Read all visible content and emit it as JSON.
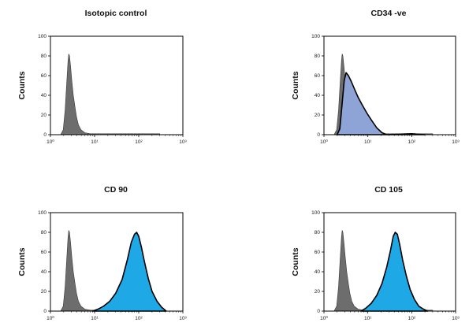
{
  "figure": {
    "colors": {
      "control_fill": "#6d6d6d",
      "control_stroke": "#3a3a3a",
      "outline_stroke": "#000000",
      "marker_fill_cd34": "#8ea4d6",
      "marker_fill": "#1ea9e6"
    }
  },
  "chart_data": [
    {
      "type": "area",
      "title": "Isotopic control",
      "ylabel": "Counts",
      "xscale": "log",
      "xlim": [
        1,
        1000
      ],
      "ylim": [
        0,
        100
      ],
      "yticks": [
        0,
        20,
        40,
        60,
        80,
        100
      ],
      "ytick_labels": [
        "0",
        "20",
        "40",
        "60",
        "80",
        "100"
      ],
      "xtick_labels": [
        "10⁰",
        "10¹",
        "10²",
        "10³"
      ],
      "series": [
        {
          "role": "control",
          "x": [
            1.7,
            1.95,
            2.15,
            2.35,
            2.5,
            2.6,
            2.7,
            2.85,
            3.05,
            3.3,
            3.6,
            3.9,
            4.3,
            4.9,
            6.0,
            8.0,
            12,
            30,
            100,
            300
          ],
          "y": [
            0,
            5,
            25,
            55,
            75,
            82,
            80,
            70,
            55,
            40,
            28,
            18,
            10,
            5,
            2,
            1,
            1,
            1,
            1,
            1
          ]
        }
      ]
    },
    {
      "type": "area",
      "title": "CD34 -ve",
      "ylabel": "Counts",
      "xscale": "log",
      "xlim": [
        1,
        1000
      ],
      "ylim": [
        0,
        100
      ],
      "yticks": [
        0,
        20,
        40,
        60,
        80,
        100
      ],
      "ytick_labels": [
        "0",
        "20",
        "40",
        "60",
        "80",
        "100"
      ],
      "xtick_labels": [
        "10⁰",
        "10¹",
        "10²",
        "10³"
      ],
      "series": [
        {
          "role": "control",
          "x": [
            1.7,
            1.95,
            2.15,
            2.35,
            2.5,
            2.6,
            2.7,
            2.85,
            3.05,
            3.3,
            3.6,
            3.9,
            4.3,
            4.9,
            6.0,
            8.0,
            12,
            30,
            100,
            300
          ],
          "y": [
            0,
            5,
            25,
            55,
            75,
            82,
            80,
            70,
            55,
            40,
            28,
            18,
            10,
            5,
            2,
            1,
            1,
            1,
            1,
            1
          ]
        },
        {
          "role": "marker",
          "x": [
            2.0,
            2.3,
            2.6,
            2.9,
            3.2,
            3.6,
            4.2,
            5.0,
            6.0,
            7.5,
            9.5,
            12,
            16,
            21,
            27,
            100,
            200
          ],
          "y": [
            0,
            6,
            32,
            55,
            63,
            60,
            54,
            46,
            38,
            30,
            22,
            15,
            7,
            2,
            0,
            1,
            0
          ]
        }
      ]
    },
    {
      "type": "area",
      "title": "CD 90",
      "ylabel": "Counts",
      "xscale": "log",
      "xlim": [
        1,
        1000
      ],
      "ylim": [
        0,
        100
      ],
      "yticks": [
        0,
        20,
        40,
        60,
        80,
        100
      ],
      "ytick_labels": [
        "0",
        "20",
        "40",
        "60",
        "80",
        "100"
      ],
      "xtick_labels": [
        "10⁰",
        "10¹",
        "10²",
        "10³"
      ],
      "series": [
        {
          "role": "control",
          "x": [
            1.7,
            1.95,
            2.15,
            2.35,
            2.5,
            2.6,
            2.7,
            2.85,
            3.05,
            3.3,
            3.6,
            3.9,
            4.3,
            4.9,
            6.0,
            8.0,
            12,
            30,
            100,
            300
          ],
          "y": [
            0,
            5,
            25,
            55,
            75,
            82,
            80,
            70,
            55,
            40,
            28,
            18,
            10,
            5,
            2,
            1,
            1,
            1,
            1,
            1
          ]
        },
        {
          "role": "marker",
          "x": [
            9,
            12,
            16,
            22,
            30,
            42,
            55,
            68,
            80,
            90,
            100,
            115,
            135,
            165,
            200,
            260,
            330,
            420
          ],
          "y": [
            0,
            2,
            5,
            10,
            18,
            32,
            52,
            70,
            78,
            80,
            76,
            65,
            50,
            33,
            20,
            10,
            4,
            0
          ]
        }
      ]
    },
    {
      "type": "area",
      "title": "CD 105",
      "ylabel": "Counts",
      "xscale": "log",
      "xlim": [
        1,
        1000
      ],
      "ylim": [
        0,
        100
      ],
      "yticks": [
        0,
        20,
        40,
        60,
        80,
        100
      ],
      "ytick_labels": [
        "0",
        "20",
        "40",
        "60",
        "80",
        "100"
      ],
      "xtick_labels": [
        "10⁰",
        "10¹",
        "10²",
        "10³"
      ],
      "series": [
        {
          "role": "control",
          "x": [
            1.7,
            1.95,
            2.15,
            2.35,
            2.5,
            2.6,
            2.7,
            2.85,
            3.05,
            3.3,
            3.6,
            3.9,
            4.3,
            4.9,
            6.0,
            8.0,
            12,
            30,
            100,
            300
          ],
          "y": [
            0,
            5,
            25,
            55,
            75,
            82,
            80,
            70,
            55,
            40,
            28,
            18,
            10,
            5,
            2,
            1,
            1,
            1,
            1,
            1
          ]
        },
        {
          "role": "marker",
          "x": [
            7,
            9,
            12,
            16,
            21,
            27,
            33,
            38,
            42,
            47,
            53,
            62,
            75,
            92,
            115,
            145,
            185,
            230
          ],
          "y": [
            0,
            3,
            8,
            16,
            28,
            45,
            62,
            76,
            80,
            78,
            68,
            52,
            36,
            22,
            12,
            5,
            2,
            0
          ]
        }
      ]
    }
  ]
}
